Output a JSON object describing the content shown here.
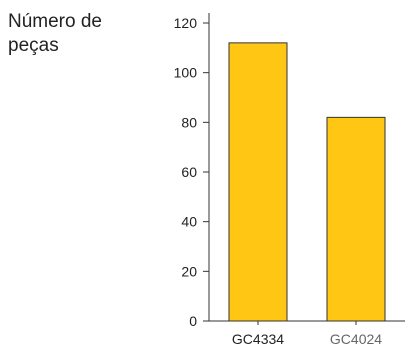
{
  "chart_data": {
    "type": "bar",
    "ylabel": "Número de\npeças",
    "xlabel": "",
    "title": "",
    "categories": [
      "GC4334",
      "GC4024"
    ],
    "values": [
      112,
      82
    ],
    "ylim": [
      0,
      120
    ],
    "yticks": [
      0,
      20,
      40,
      60,
      80,
      100,
      120
    ],
    "grid": false,
    "legend": "none",
    "colors": {
      "bar_fill": "#FFC713",
      "bar_stroke": "#333333",
      "axis": "#333333",
      "text": "#222222",
      "category_text": [
        "#222222",
        "#666666"
      ]
    }
  }
}
